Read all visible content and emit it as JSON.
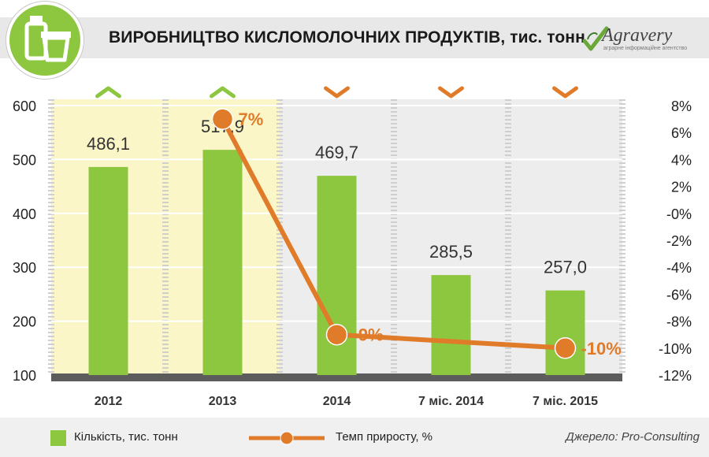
{
  "header": {
    "title": "ВИРОБНИЦТВО КИСЛОМОЛОЧНИХ ПРОДУКТІВ, тис. тонн",
    "brand_name": "Agravery",
    "brand_sub": "аграрне інформаційне агентство"
  },
  "legend": {
    "quantity_label": "Кількість, тис. тонн",
    "growth_label": "Темп приросту, %"
  },
  "source": "Джерело: Pro-Consulting",
  "colors": {
    "bar": "#8dc63f",
    "line": "#e07b2a",
    "highlight_band": "#fbf6c8",
    "plot_band": "#ededed",
    "baseline": "#5c5c5c"
  },
  "chart_data": {
    "type": "bar",
    "categories": [
      "2012",
      "2013",
      "2014",
      "7 міс. 2014",
      "7 міс. 2015"
    ],
    "series": [
      {
        "name": "Кількість, тис. тонн",
        "type": "bar",
        "axis": "left",
        "values": [
          486.1,
          517.9,
          469.7,
          285.5,
          257.0
        ],
        "labels": [
          "486,1",
          "517,9",
          "469,7",
          "285,5",
          "257,0"
        ]
      },
      {
        "name": "Темп приросту, %",
        "type": "line",
        "axis": "right",
        "x": [
          "2013",
          "2014",
          "7 міс. 2015"
        ],
        "values": [
          7,
          -9,
          -10
        ],
        "labels": [
          "7%",
          "-9%",
          "-10%"
        ]
      }
    ],
    "trend_markers": [
      "up",
      "up",
      "down",
      "down",
      "down"
    ],
    "y_left": {
      "min": 100,
      "max": 600,
      "ticks": [
        "100",
        "200",
        "300",
        "400",
        "500",
        "600"
      ]
    },
    "y_right": {
      "min": -12,
      "max": 8,
      "ticks": [
        "8%",
        "6%",
        "4%",
        "2%",
        "-0%",
        "-2%",
        "-4%",
        "-6%",
        "-8%",
        "-10%",
        "-12%"
      ]
    },
    "highlighted_categories": [
      "2012",
      "2013"
    ],
    "legend_position": "bottom",
    "grid": true
  }
}
